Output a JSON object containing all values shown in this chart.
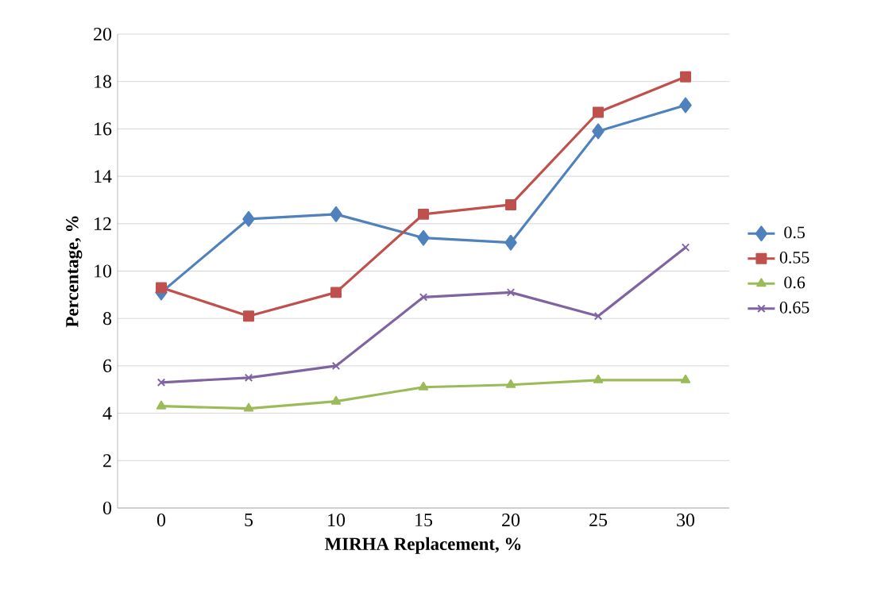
{
  "chart_data": {
    "type": "line",
    "xlabel": "MIRHA Replacement, %",
    "ylabel": "Percentage, %",
    "categories": [
      "0",
      "5",
      "10",
      "15",
      "20",
      "25",
      "30"
    ],
    "ylim": [
      0,
      20
    ],
    "yticks": [
      0,
      2,
      4,
      6,
      8,
      10,
      12,
      14,
      16,
      18,
      20
    ],
    "grid": "y",
    "legend": "right",
    "line_style": "solid",
    "series": [
      {
        "name": "0.5",
        "color": "#4f81bd",
        "marker": "diamond",
        "values": [
          9.1,
          12.2,
          12.4,
          11.4,
          11.2,
          15.9,
          17.0
        ]
      },
      {
        "name": "0.55",
        "color": "#c0504d",
        "marker": "square",
        "values": [
          9.3,
          8.1,
          9.1,
          12.4,
          12.8,
          16.7,
          18.2
        ]
      },
      {
        "name": "0.6",
        "color": "#9bbb59",
        "marker": "triangle",
        "values": [
          4.3,
          4.2,
          4.5,
          5.1,
          5.2,
          5.4,
          5.4
        ]
      },
      {
        "name": "0.65",
        "color": "#8064a2",
        "marker": "cross",
        "values": [
          5.3,
          5.5,
          6.0,
          8.9,
          9.1,
          8.1,
          11.0
        ]
      }
    ]
  }
}
